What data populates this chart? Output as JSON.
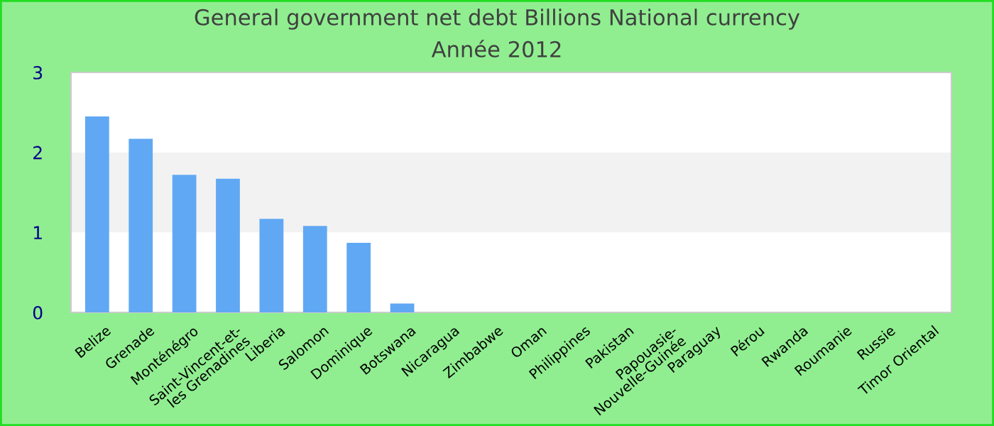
{
  "chart_data": {
    "type": "bar",
    "title": "General government net debt Billions National currency",
    "subtitle": "Année 2012",
    "categories": [
      "Belize",
      "Grenade",
      "Monténégro",
      "Saint-Vincent-et-les Grenadines",
      "Liberia",
      "Salomon",
      "Dominique",
      "Botswana",
      "Nicaragua",
      "Zimbabwe",
      "Oman",
      "Philippines",
      "Pakistan",
      "Papouasie-Nouvelle-Guinée",
      "Paraguay",
      "Pérou",
      "Rwanda",
      "Roumanie",
      "Russie",
      "Timor Oriental"
    ],
    "values": [
      2.45,
      2.17,
      1.72,
      1.67,
      1.17,
      1.08,
      0.87,
      0.11,
      null,
      null,
      null,
      null,
      null,
      null,
      null,
      null,
      null,
      null,
      null,
      null
    ],
    "color": "#60a8f4",
    "ylim": [
      0,
      3
    ],
    "yticks": [
      0,
      1,
      2,
      3
    ],
    "bands": [
      {
        "axis": "y",
        "from": 1,
        "to": 2,
        "color": "#f2f2f2"
      }
    ],
    "grid": false,
    "legend": false
  }
}
